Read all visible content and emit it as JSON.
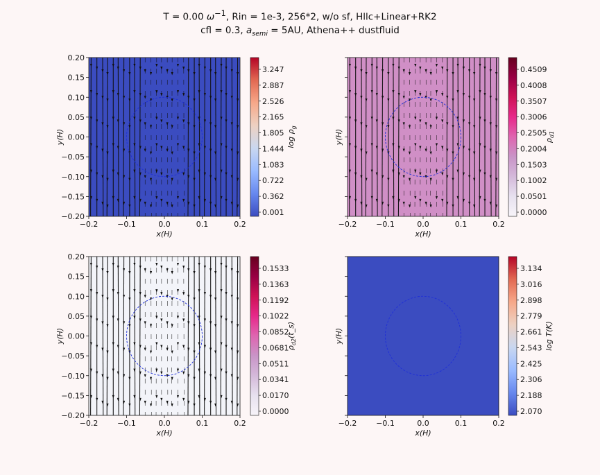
{
  "title": {
    "line1_pre": "T = 0.00 ",
    "line1_omega": "ω",
    "line1_sup": "−1",
    "line1_post": ", Rin = 1e-3, 256*2, w/o sf,    Hllc+Linear+RK2",
    "line2_pre": "cfl = 0.3, ",
    "line2_a": "a",
    "line2_sub": "semi",
    "line2_post": " = 5AU, Athena++ dustfluid"
  },
  "chart_data": [
    {
      "type": "heatmap",
      "name": "gas-density",
      "xlabel": "x(H)",
      "ylabel": "y(H)",
      "xlim": [
        -0.2,
        0.2
      ],
      "ylim": [
        -0.2,
        0.2
      ],
      "xticks": [
        "−0.2",
        "−0.1",
        "0.0",
        "0.1",
        "0.2"
      ],
      "yticks": [
        "0.20",
        "0.15",
        "0.10",
        "0.05",
        "0.00",
        "−0.05",
        "−0.10",
        "−0.15",
        "−0.20"
      ],
      "show_yticks": true,
      "field_color": "#3b4cc0",
      "colormap": "coolwarm",
      "colorbar_label": "log ρ_g",
      "colorbar_ticks": [
        "3.247",
        "2.887",
        "2.526",
        "2.165",
        "1.805",
        "1.444",
        "1.083",
        "0.722",
        "0.362",
        "0.001"
      ],
      "streamlines": true,
      "circle": {
        "cx": 0.0,
        "cy": 0.0,
        "r": 0.1,
        "color": "#1f2fd6"
      }
    },
    {
      "type": "heatmap",
      "name": "dust-density-1",
      "xlabel": "x(H)",
      "ylabel": "y(H)",
      "xlim": [
        -0.2,
        0.2
      ],
      "ylim": [
        -0.2,
        0.2
      ],
      "xticks": [
        "−0.2",
        "−0.1",
        "0.0",
        "0.1",
        "0.2"
      ],
      "yticks": [],
      "show_yticks": false,
      "field_color": "#d08fc6",
      "colormap": "PuRd",
      "colorbar_label": "ρ_d1",
      "colorbar_ticks": [
        "0.4509",
        "0.4008",
        "0.3507",
        "0.3006",
        "0.2505",
        "0.2004",
        "0.1503",
        "0.1002",
        "0.0501",
        "0.0000"
      ],
      "streamlines": true,
      "circle": {
        "cx": 0.0,
        "cy": 0.0,
        "r": 0.1,
        "color": "#1f2fd6"
      }
    },
    {
      "type": "heatmap",
      "name": "dust-density-2",
      "xlabel": "x(H)",
      "ylabel": "y(H)",
      "xlim": [
        -0.2,
        0.2
      ],
      "ylim": [
        -0.2,
        0.2
      ],
      "xticks": [
        "−0.2",
        "−0.1",
        "0.0",
        "0.1",
        "0.2"
      ],
      "yticks": [
        "0.20",
        "0.15",
        "0.10",
        "0.05",
        "0.00",
        "−0.05",
        "−0.10",
        "−0.15",
        "−0.20"
      ],
      "show_yticks": true,
      "field_color": "#f3f4f9",
      "colormap": "PuRd",
      "colorbar_label": "ρ_d2(t_s)",
      "colorbar_ticks": [
        "0.1533",
        "0.1363",
        "0.1192",
        "0.1022",
        "0.0852",
        "0.0681",
        "0.0511",
        "0.0341",
        "0.0170",
        "0.0000"
      ],
      "streamlines": true,
      "circle": {
        "cx": 0.0,
        "cy": 0.0,
        "r": 0.1,
        "color": "#1f2fd6"
      }
    },
    {
      "type": "heatmap",
      "name": "temperature",
      "xlabel": "x(H)",
      "ylabel": "y(H)",
      "xlim": [
        -0.2,
        0.2
      ],
      "ylim": [
        -0.2,
        0.2
      ],
      "xticks": [
        "−0.2",
        "−0.1",
        "0.0",
        "0.1",
        "0.2"
      ],
      "yticks": [],
      "show_yticks": false,
      "field_color": "#3b4cc0",
      "colormap": "coolwarm",
      "colorbar_label": "log T(K)",
      "colorbar_ticks": [
        "3.134",
        "3.016",
        "2.898",
        "2.779",
        "2.661",
        "2.543",
        "2.425",
        "2.306",
        "2.188",
        "2.070"
      ],
      "streamlines": false,
      "circle": {
        "cx": 0.0,
        "cy": 0.0,
        "r": 0.1,
        "color": "#1f2fd6"
      }
    }
  ]
}
